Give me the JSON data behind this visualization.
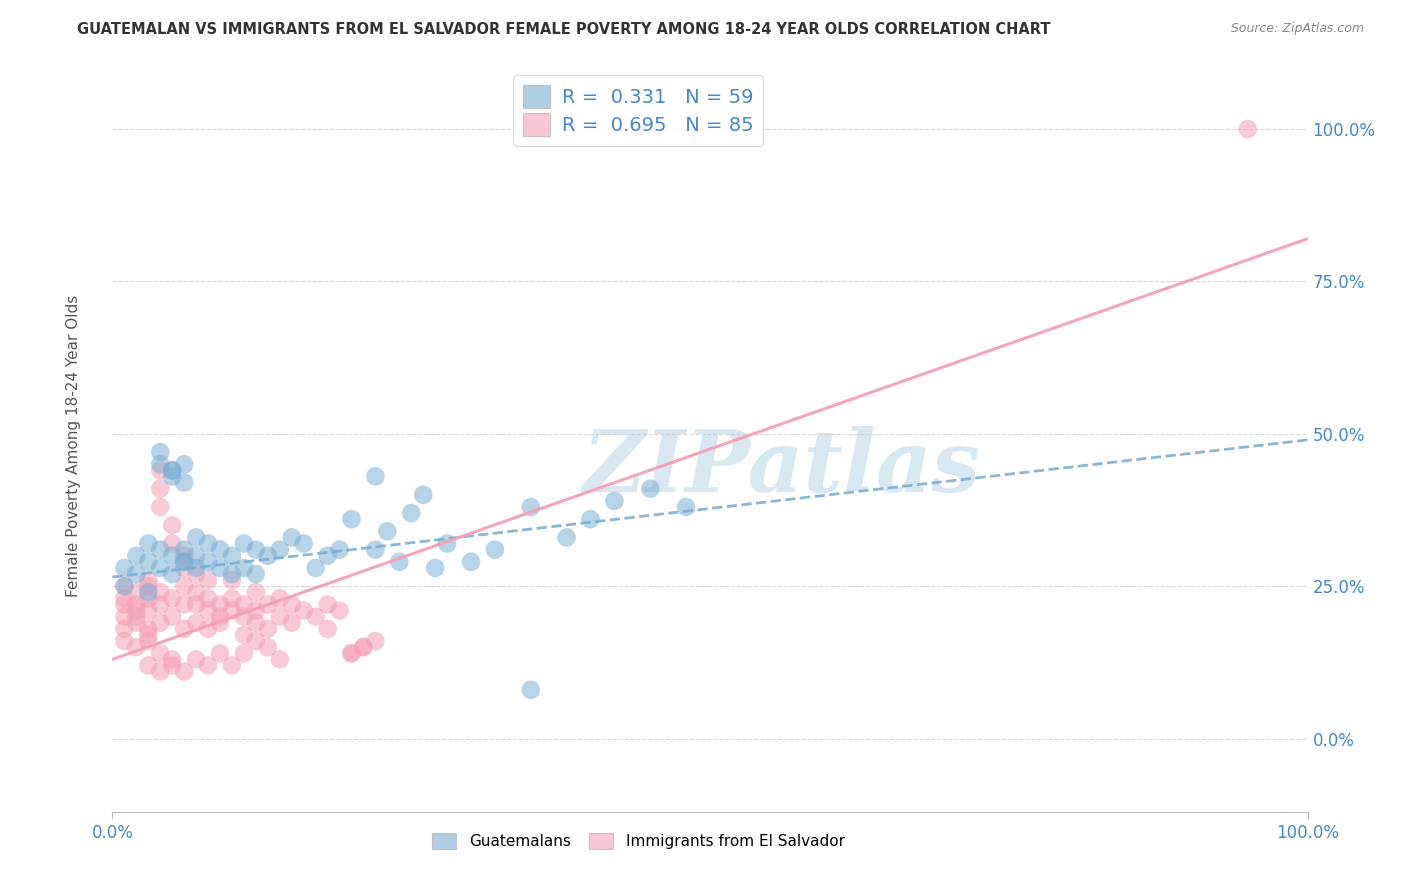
{
  "title": "GUATEMALAN VS IMMIGRANTS FROM EL SALVADOR FEMALE POVERTY AMONG 18-24 YEAR OLDS CORRELATION CHART",
  "source": "Source: ZipAtlas.com",
  "ylabel": "Female Poverty Among 18-24 Year Olds",
  "watermark": "ZIPatlas",
  "legend_blue_r": "0.331",
  "legend_blue_n": "59",
  "legend_pink_r": "0.695",
  "legend_pink_n": "85",
  "blue_color": "#7BAFD4",
  "pink_color": "#F4A0B5",
  "legend_text_color": "#4488CC",
  "tick_color": "#4488CC",
  "ylabel_color": "#555555",
  "title_color": "#333333",
  "source_color": "#888888",
  "watermark_color": "#D8E8F0",
  "xlim": [
    0.0,
    1.0
  ],
  "ylim": [
    -0.12,
    1.08
  ],
  "ytick_positions": [
    0.0,
    0.25,
    0.5,
    0.75,
    1.0
  ],
  "ytick_labels": [
    "0.0%",
    "25.0%",
    "50.0%",
    "75.0%",
    "100.0%"
  ],
  "xtick_positions": [
    0.0,
    1.0
  ],
  "xtick_labels": [
    "0.0%",
    "100.0%"
  ],
  "blue_trend_x": [
    0.0,
    1.0
  ],
  "blue_trend_y": [
    0.265,
    0.49
  ],
  "pink_trend_x": [
    0.0,
    1.0
  ],
  "pink_trend_y": [
    0.13,
    0.82
  ],
  "blue_scatter_x": [
    0.01,
    0.01,
    0.02,
    0.02,
    0.03,
    0.03,
    0.03,
    0.04,
    0.04,
    0.05,
    0.05,
    0.05,
    0.06,
    0.06,
    0.06,
    0.07,
    0.07,
    0.07,
    0.08,
    0.08,
    0.09,
    0.09,
    0.1,
    0.1,
    0.11,
    0.11,
    0.12,
    0.12,
    0.13,
    0.14,
    0.15,
    0.16,
    0.17,
    0.18,
    0.19,
    0.2,
    0.22,
    0.23,
    0.25,
    0.27,
    0.28,
    0.3,
    0.32,
    0.35,
    0.38,
    0.4,
    0.42,
    0.45,
    0.48,
    0.35,
    0.04,
    0.04,
    0.05,
    0.05,
    0.06,
    0.06,
    0.22,
    0.24,
    0.26
  ],
  "blue_scatter_y": [
    0.28,
    0.25,
    0.3,
    0.27,
    0.29,
    0.32,
    0.24,
    0.28,
    0.31,
    0.44,
    0.43,
    0.3,
    0.29,
    0.31,
    0.42,
    0.3,
    0.33,
    0.28,
    0.32,
    0.29,
    0.31,
    0.28,
    0.3,
    0.27,
    0.32,
    0.28,
    0.31,
    0.27,
    0.3,
    0.31,
    0.33,
    0.32,
    0.28,
    0.3,
    0.31,
    0.36,
    0.31,
    0.34,
    0.37,
    0.28,
    0.32,
    0.29,
    0.31,
    0.38,
    0.33,
    0.36,
    0.39,
    0.41,
    0.38,
    0.08,
    0.47,
    0.45,
    0.44,
    0.27,
    0.45,
    0.29,
    0.43,
    0.29,
    0.4
  ],
  "pink_scatter_x": [
    0.01,
    0.01,
    0.01,
    0.01,
    0.01,
    0.02,
    0.02,
    0.02,
    0.02,
    0.02,
    0.03,
    0.03,
    0.03,
    0.03,
    0.03,
    0.03,
    0.04,
    0.04,
    0.04,
    0.04,
    0.04,
    0.04,
    0.05,
    0.05,
    0.05,
    0.05,
    0.06,
    0.06,
    0.06,
    0.06,
    0.06,
    0.07,
    0.07,
    0.07,
    0.07,
    0.08,
    0.08,
    0.08,
    0.08,
    0.09,
    0.09,
    0.09,
    0.1,
    0.1,
    0.1,
    0.11,
    0.11,
    0.11,
    0.12,
    0.12,
    0.12,
    0.13,
    0.13,
    0.14,
    0.14,
    0.15,
    0.15,
    0.16,
    0.17,
    0.18,
    0.18,
    0.19,
    0.2,
    0.21,
    0.22,
    0.03,
    0.04,
    0.05,
    0.06,
    0.07,
    0.08,
    0.04,
    0.05,
    0.09,
    0.1,
    0.11,
    0.12,
    0.13,
    0.14,
    0.02,
    0.01,
    0.03,
    0.2,
    0.21,
    0.95
  ],
  "pink_scatter_y": [
    0.22,
    0.2,
    0.18,
    0.25,
    0.23,
    0.21,
    0.19,
    0.24,
    0.22,
    0.2,
    0.23,
    0.18,
    0.25,
    0.26,
    0.21,
    0.17,
    0.24,
    0.19,
    0.22,
    0.44,
    0.41,
    0.38,
    0.23,
    0.2,
    0.35,
    0.32,
    0.22,
    0.18,
    0.25,
    0.28,
    0.3,
    0.22,
    0.19,
    0.24,
    0.27,
    0.21,
    0.18,
    0.23,
    0.26,
    0.2,
    0.22,
    0.19,
    0.21,
    0.23,
    0.26,
    0.2,
    0.22,
    0.17,
    0.21,
    0.19,
    0.24,
    0.22,
    0.18,
    0.2,
    0.23,
    0.19,
    0.22,
    0.21,
    0.2,
    0.22,
    0.18,
    0.21,
    0.14,
    0.15,
    0.16,
    0.12,
    0.11,
    0.13,
    0.11,
    0.13,
    0.12,
    0.14,
    0.12,
    0.14,
    0.12,
    0.14,
    0.16,
    0.15,
    0.13,
    0.15,
    0.16,
    0.16,
    0.14,
    0.15,
    1.0
  ],
  "background_color": "#ffffff",
  "grid_color": "#cccccc"
}
